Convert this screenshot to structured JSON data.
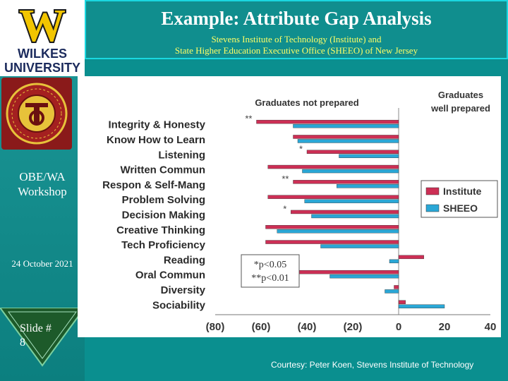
{
  "header": {
    "title": "Example: Attribute Gap Analysis",
    "subtitle_line1": "Stevens Institute of Technology (Institute)  and",
    "subtitle_line2": "State Higher Education Executive Office  (SHEEO) of New Jersey"
  },
  "sidebar": {
    "logo_letter": "W",
    "logo_line1": "WILKES",
    "logo_line2": "UNIVERSITY",
    "workshop_line1": "OBE/WA",
    "workshop_line2": "Workshop",
    "date": "24 October 2021",
    "slide_label": "Slide #",
    "slide_number": "8"
  },
  "courtesy": "Courtesy: Peter Koen, Stevens Institute of Technology",
  "colors": {
    "background": "#0a8f8f",
    "institute": "#cc2f55",
    "sheeo": "#2aa7d6",
    "chart_panel": "#ffffff"
  },
  "chart_data": {
    "type": "bar",
    "orientation": "horizontal",
    "title_left": "Graduates not  prepared",
    "title_right_line1": "Graduates",
    "title_right_line2": "well prepared",
    "categories": [
      "Integrity & Honesty",
      "Know How to Learn",
      "Listening",
      "Written Commun",
      "Respon & Self-Mang",
      "Problem Solving",
      "Decision Making",
      "Creative Thinking",
      "Tech Proficiency",
      "Reading",
      "Oral Commun",
      "Diversity",
      "Sociability"
    ],
    "series": [
      {
        "name": "Institute",
        "values": [
          -62,
          -46,
          -40,
          -57,
          -46,
          -57,
          -47,
          -58,
          -58,
          11,
          -49,
          -2,
          3
        ]
      },
      {
        "name": "SHEEO",
        "values": [
          -46,
          -44,
          -26,
          -42,
          -27,
          -41,
          -38,
          -53,
          -34,
          -4,
          -30,
          -6,
          20
        ]
      }
    ],
    "significance": [
      "**",
      "",
      "*",
      "",
      "**",
      "",
      "*",
      "",
      "",
      "",
      "*",
      "",
      ""
    ],
    "x_ticks": [
      "(80)",
      "(60)",
      "(40)",
      "(20)",
      "0",
      "20",
      "40"
    ],
    "xlim": [
      -80,
      40
    ],
    "legend_position": "right",
    "notes": [
      "*p<0.05",
      "**p<0.01"
    ]
  }
}
